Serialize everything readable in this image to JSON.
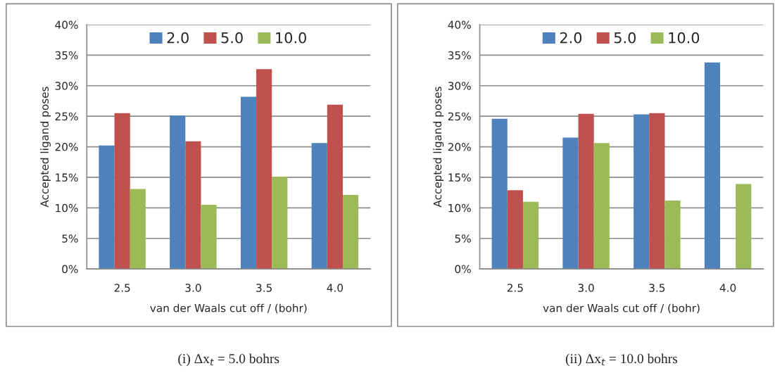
{
  "chart_data": [
    {
      "type": "bar",
      "xlabel": "van der Waals cut off / (bohr)",
      "ylabel": "Accepted ligand poses",
      "categories": [
        "2.5",
        "3.0",
        "3.5",
        "4.0"
      ],
      "series": [
        {
          "name": "2.0",
          "color": "#4f81bd",
          "values": [
            20.2,
            25.1,
            28.2,
            20.6
          ]
        },
        {
          "name": "5.0",
          "color": "#c0504d",
          "values": [
            25.5,
            20.9,
            32.7,
            26.9
          ]
        },
        {
          "name": "10.0",
          "color": "#9bbb59",
          "values": [
            13.1,
            10.5,
            15.1,
            12.1
          ]
        }
      ],
      "ylim": [
        0,
        40
      ],
      "yticks": [
        {
          "value": 0,
          "label": "0%"
        },
        {
          "value": 5,
          "label": "5%"
        },
        {
          "value": 10,
          "label": "10%"
        },
        {
          "value": 15,
          "label": "15%"
        },
        {
          "value": 20,
          "label": "20%"
        },
        {
          "value": 25,
          "label": "25%"
        },
        {
          "value": 30,
          "label": "30%"
        },
        {
          "value": 35,
          "label": "35%"
        },
        {
          "value": 40,
          "label": "40%"
        }
      ],
      "grid": "y",
      "legend": "top",
      "annotations": [
        "(i) Δx$_{t}$ = 5.0 bohrs"
      ]
    },
    {
      "type": "bar",
      "xlabel": "van der Waals cut off / (bohr)",
      "ylabel": "Accepted ligand poses",
      "categories": [
        "2.5",
        "3.0",
        "3.5",
        "4.0"
      ],
      "series": [
        {
          "name": "2.0",
          "color": "#4f81bd",
          "values": [
            24.6,
            21.5,
            25.3,
            33.8
          ]
        },
        {
          "name": "5.0",
          "color": "#c0504d",
          "values": [
            12.9,
            25.4,
            25.5,
            null
          ]
        },
        {
          "name": "10.0",
          "color": "#9bbb59",
          "values": [
            11.0,
            20.6,
            11.2,
            13.9
          ]
        }
      ],
      "ylim": [
        0,
        40
      ],
      "yticks": [
        {
          "value": 0,
          "label": "0%"
        },
        {
          "value": 5,
          "label": "5%"
        },
        {
          "value": 10,
          "label": "10%"
        },
        {
          "value": 15,
          "label": "15%"
        },
        {
          "value": 20,
          "label": "20%"
        },
        {
          "value": 25,
          "label": "25%"
        },
        {
          "value": 30,
          "label": "30%"
        },
        {
          "value": 35,
          "label": "35%"
        },
        {
          "value": 40,
          "label": "40%"
        }
      ],
      "grid": "y",
      "legend": "top",
      "annotations": [
        "(ii) Δx$_{t}$ = 10.0 bohrs"
      ]
    }
  ]
}
